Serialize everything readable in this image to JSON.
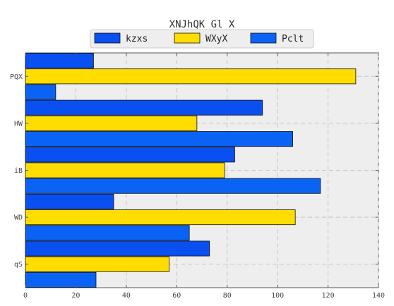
{
  "chart_data": {
    "type": "bar",
    "orientation": "horizontal",
    "title": "XNJhQK Gl X",
    "xlabel": "",
    "ylabel": "",
    "xlim": [
      0,
      140
    ],
    "x_ticks": [
      0,
      20,
      40,
      60,
      80,
      100,
      120,
      140
    ],
    "grid": true,
    "legend_position": "top-center",
    "categories": [
      "PQX",
      "HW",
      "iB",
      "WD",
      "qS"
    ],
    "series": [
      {
        "name": "kzxs",
        "color": "#0a4ff0",
        "values": [
          27,
          94,
          83,
          35,
          73
        ]
      },
      {
        "name": "WXyX",
        "color": "#ffdd00",
        "values": [
          131,
          68,
          79,
          107,
          57
        ]
      },
      {
        "name": "Pclt",
        "color": "#0a63f5",
        "values": [
          12,
          106,
          117,
          65,
          28
        ]
      }
    ]
  }
}
